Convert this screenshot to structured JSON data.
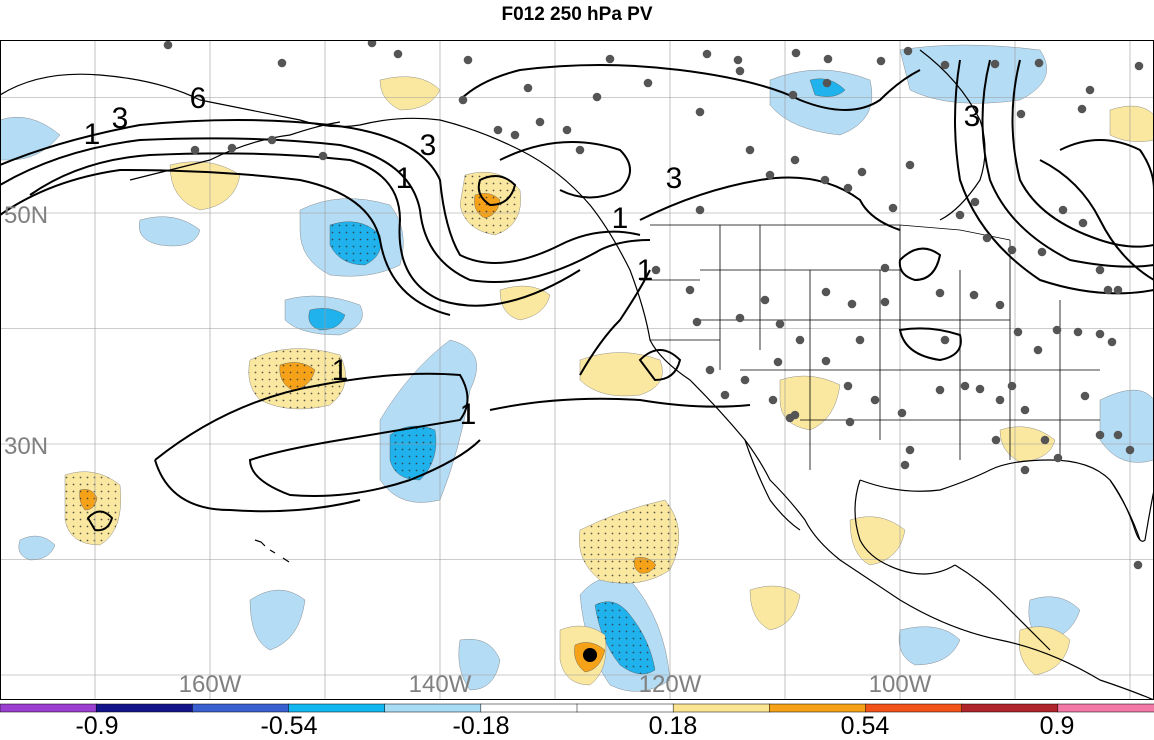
{
  "title": "F012 250 hPa PV",
  "map": {
    "latitude_labels": [
      {
        "label": "50N",
        "value": 50
      },
      {
        "label": "30N",
        "value": 30
      }
    ],
    "longitude_labels": [
      {
        "label": "160W",
        "value": -160
      },
      {
        "label": "140W",
        "value": -140
      },
      {
        "label": "120W",
        "value": -120
      },
      {
        "label": "100W",
        "value": -100
      }
    ],
    "contour_labels": [
      "1",
      "3",
      "6",
      "3",
      "1",
      "3",
      "1",
      "1",
      "1",
      "1",
      "3"
    ],
    "contour_color": "#000000",
    "land_outline_color": "#000000",
    "grid_color": "#9a9a9a",
    "station_dot_color": "#555555",
    "marker_color": "#000000"
  },
  "colorbar": {
    "tick_labels": [
      "-0.9",
      "-0.54",
      "-0.18",
      "0.18",
      "0.54",
      "0.9"
    ],
    "colors": [
      "#9b3fd0",
      "#14148a",
      "#3a5fd0",
      "#13b7ef",
      "#a8dcf5",
      "#ffffff",
      "#ffffff",
      "#fbe592",
      "#f5a219",
      "#f2531b",
      "#b0242b",
      "#f279a6"
    ]
  },
  "fill_colors": {
    "light_blue": "#b4dcf5",
    "blue": "#1fb2ec",
    "light_yellow": "#fbe8a0",
    "orange": "#f5a219"
  }
}
